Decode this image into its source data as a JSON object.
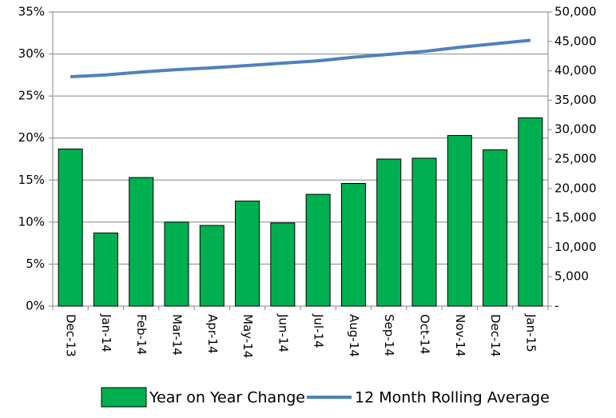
{
  "chart_data": {
    "type": "bar",
    "categories": [
      "Dec-13",
      "Jan-14",
      "Feb-14",
      "Mar-14",
      "Apr-14",
      "May-14",
      "Jun-14",
      "Jul-14",
      "Aug-14",
      "Sep-14",
      "Oct-14",
      "Nov-14",
      "Dec-14",
      "Jan-15"
    ],
    "series": [
      {
        "name": "Year on Year Change",
        "type": "bar",
        "color": "#00b050",
        "values": [
          18.7,
          8.7,
          15.3,
          10.0,
          9.6,
          12.5,
          9.9,
          13.3,
          14.6,
          17.5,
          17.6,
          20.3,
          18.6,
          22.4
        ]
      },
      {
        "name": "12 Month Rolling Average",
        "type": "line",
        "axis": "y2",
        "color": "#4f81bd",
        "values": [
          39000,
          39300,
          39800,
          40200,
          40500,
          40900,
          41300,
          41700,
          42300,
          42800,
          43300,
          44000,
          44600,
          45200
        ]
      }
    ],
    "ylim": [
      0,
      35
    ],
    "yticks": [
      {
        "value": 0,
        "label": "0%"
      },
      {
        "value": 5,
        "label": "5%"
      },
      {
        "value": 10,
        "label": "10%"
      },
      {
        "value": 15,
        "label": "15%"
      },
      {
        "value": 20,
        "label": "20%"
      },
      {
        "value": 25,
        "label": "25%"
      },
      {
        "value": 30,
        "label": "30%"
      },
      {
        "value": 35,
        "label": "35%"
      }
    ],
    "y2lim": [
      0,
      50000
    ],
    "y2ticks": [
      {
        "value": 0,
        "label": "-"
      },
      {
        "value": 5000,
        "label": "5,000"
      },
      {
        "value": 10000,
        "label": "10,000"
      },
      {
        "value": 15000,
        "label": "15,000"
      },
      {
        "value": 20000,
        "label": "20,000"
      },
      {
        "value": 25000,
        "label": "25,000"
      },
      {
        "value": 30000,
        "label": "30,000"
      },
      {
        "value": 35000,
        "label": "35,000"
      },
      {
        "value": 40000,
        "label": "40,000"
      },
      {
        "value": 45000,
        "label": "45,000"
      },
      {
        "value": 50000,
        "label": "50,000"
      }
    ],
    "grid": true,
    "legend": "bottom"
  }
}
